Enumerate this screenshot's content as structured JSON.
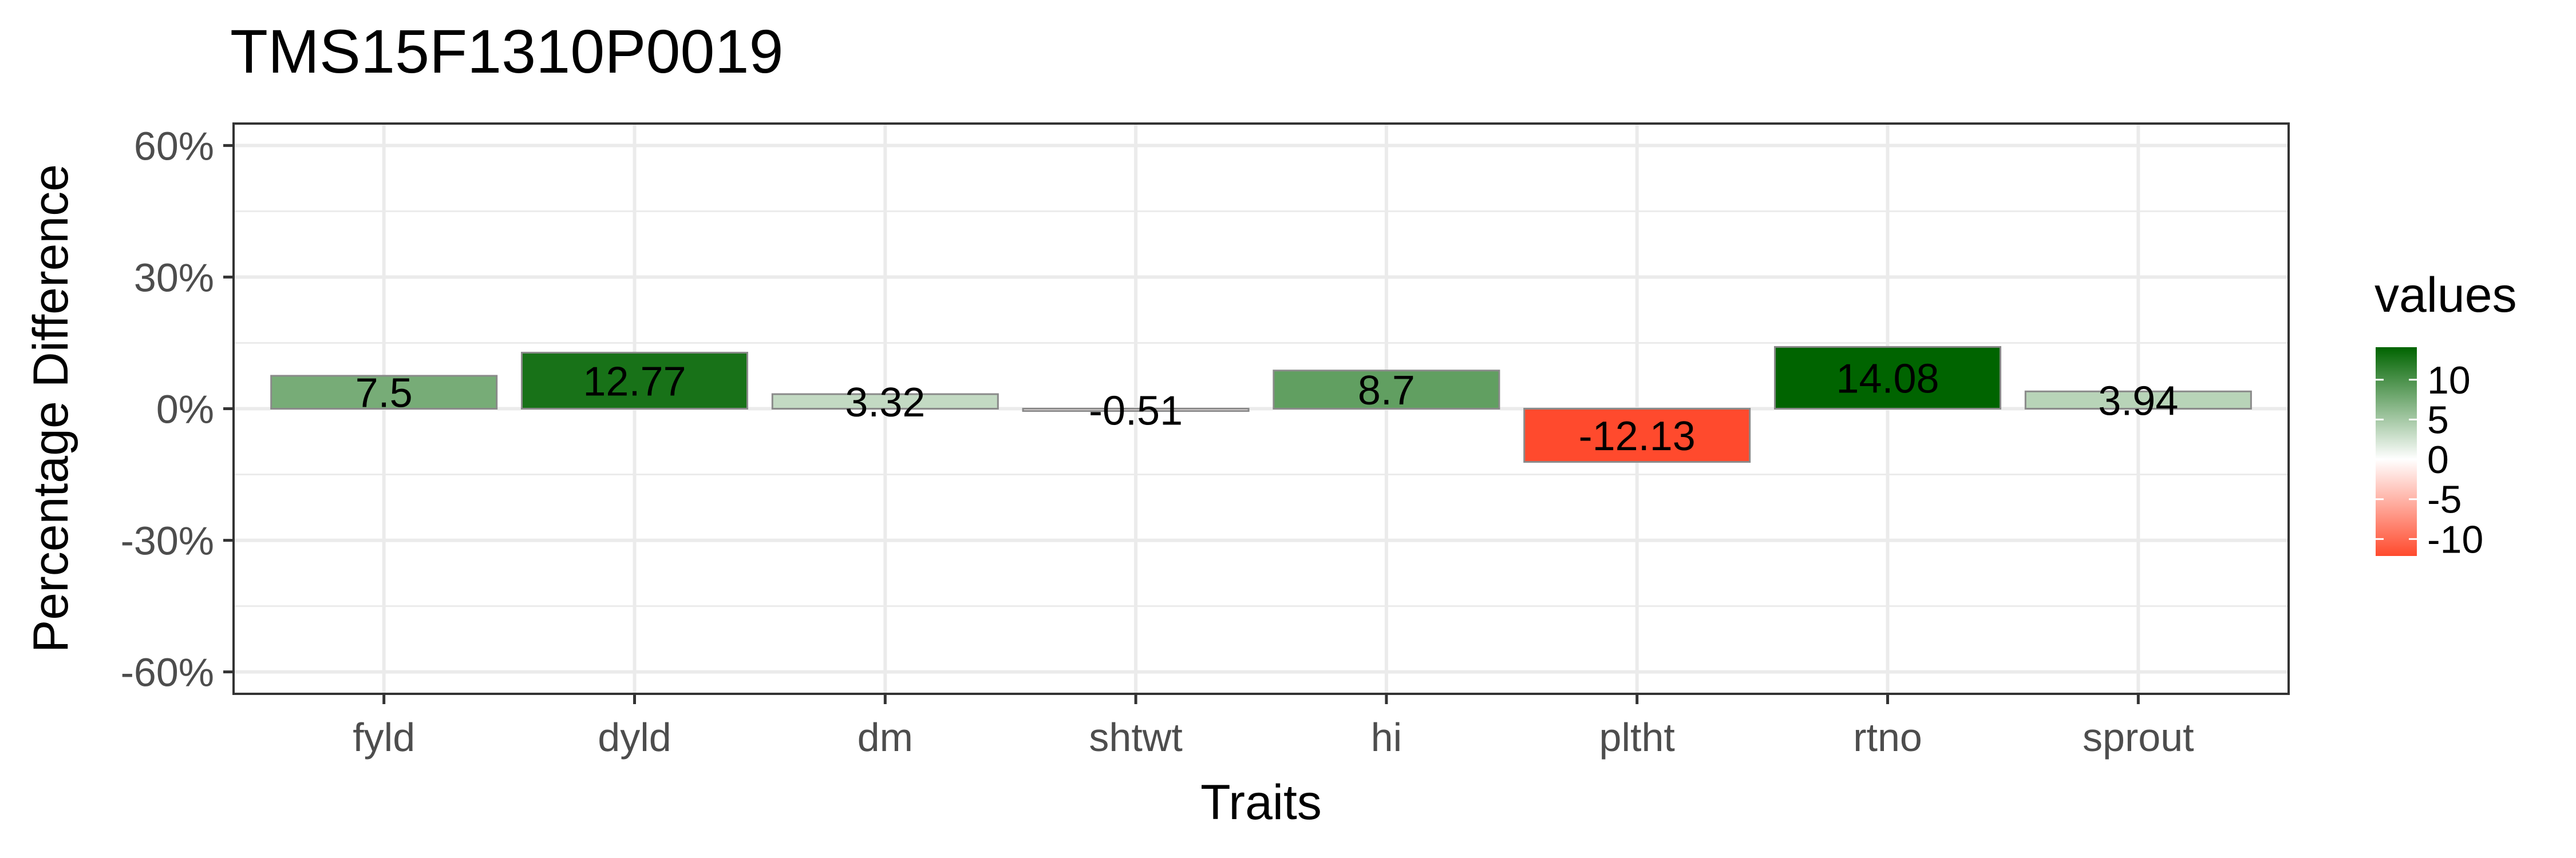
{
  "chart_data": {
    "type": "bar",
    "title": "TMS15F1310P0019",
    "xlabel": "Traits",
    "ylabel": "Percentage Difference",
    "categories": [
      "fyld",
      "dyld",
      "dm",
      "shtwt",
      "hi",
      "pltht",
      "rtno",
      "sprout"
    ],
    "values": [
      7.5,
      12.77,
      3.32,
      -0.51,
      8.7,
      -12.13,
      14.08,
      3.94
    ],
    "value_labels": [
      "7.5",
      "12.77",
      "3.32",
      "-0.51",
      "8.7",
      "-12.13",
      "14.08",
      "3.94"
    ],
    "ylim": [
      -65,
      65
    ],
    "y_ticks": [
      -60,
      -30,
      0,
      30,
      60
    ],
    "y_tick_labels": [
      "-60%",
      "-30%",
      "0%",
      "30%",
      "60%"
    ],
    "grid": true,
    "legend": {
      "title": "values",
      "placement": "right",
      "ticks": [
        10,
        5,
        0,
        -5,
        -10
      ],
      "tick_labels": [
        "10",
        "5",
        "0",
        "-5",
        "-10"
      ],
      "range": [
        -12.13,
        14.08
      ],
      "colors": {
        "low": "#ff4a2d",
        "mid": "#ffffff",
        "high": "#006400"
      }
    }
  }
}
